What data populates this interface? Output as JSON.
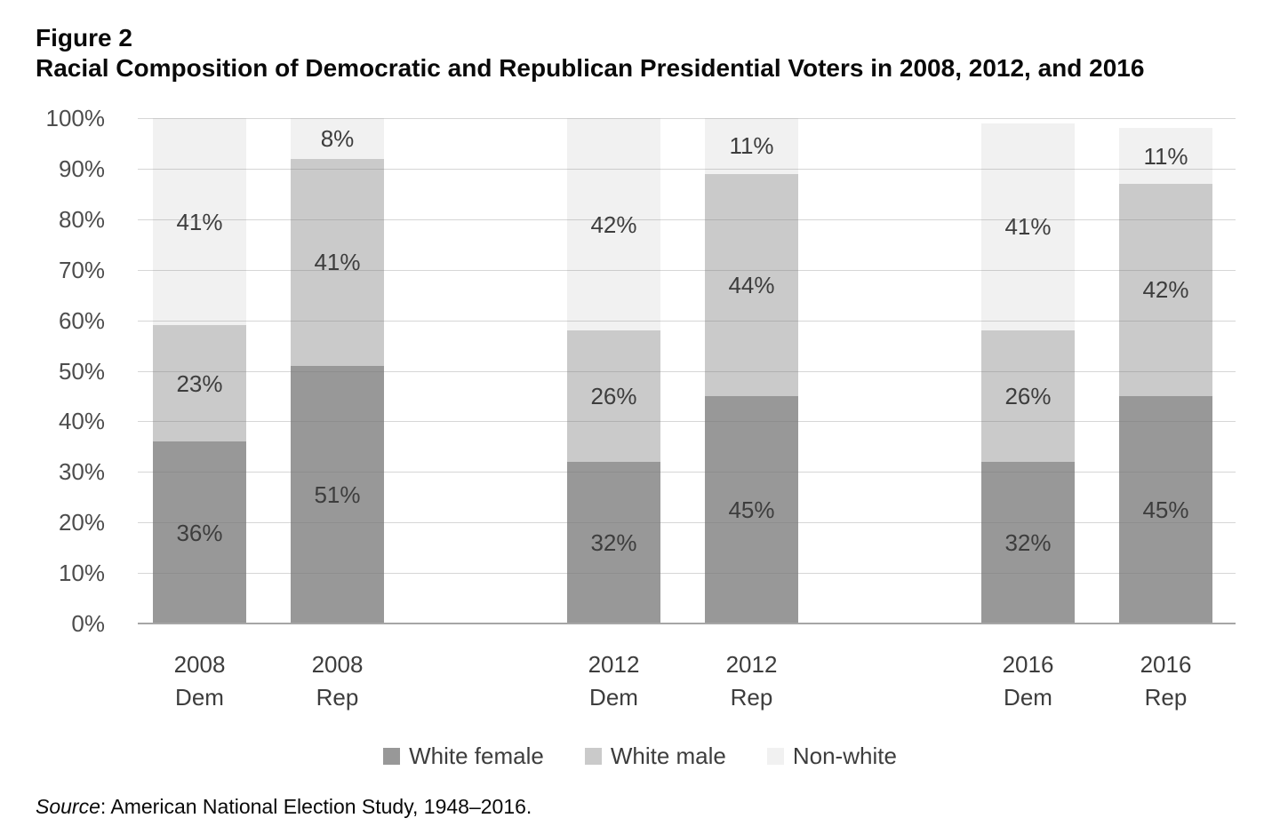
{
  "figure": {
    "label": "Figure 2",
    "title": "Racial Composition of Democratic and Republican Presidential Voters in 2008, 2012, and 2016",
    "source": {
      "prefix": "Source",
      "text": ": American National Election Study, 1948–2016."
    }
  },
  "chart_data": {
    "type": "bar",
    "stacked": true,
    "title": "Racial Composition of Democratic and Republican Presidential Voters in 2008, 2012, and 2016",
    "categories": [
      "2008 Dem",
      "2008 Rep",
      "2012 Dem",
      "2012 Rep",
      "2016 Dem",
      "2016 Rep"
    ],
    "category_lines": [
      [
        "2008",
        "Dem"
      ],
      [
        "2008",
        "Rep"
      ],
      [
        "2012",
        "Dem"
      ],
      [
        "2012",
        "Rep"
      ],
      [
        "2016",
        "Dem"
      ],
      [
        "2016",
        "Rep"
      ]
    ],
    "series": [
      {
        "name": "White female",
        "color": "#989898",
        "values": [
          36,
          51,
          32,
          45,
          32,
          45
        ]
      },
      {
        "name": "White male",
        "color": "#cacaca",
        "values": [
          23,
          41,
          26,
          44,
          26,
          42
        ]
      },
      {
        "name": "Non-white",
        "color": "#f1f1f1",
        "values": [
          41,
          8,
          42,
          11,
          41,
          11
        ]
      }
    ],
    "value_suffix": "%",
    "ylim": [
      0,
      100
    ],
    "ytick_step": 10,
    "y_ticks": [
      "0%",
      "10%",
      "20%",
      "30%",
      "40%",
      "50%",
      "60%",
      "70%",
      "80%",
      "90%",
      "100%"
    ],
    "grid": true,
    "legend_position": "bottom",
    "legend": [
      "White female",
      "White male",
      "Non-white"
    ],
    "colors": {
      "gridline": "#d9d9d9",
      "axis_line": "#a6a6a6",
      "bar_label_text": "#3d3d3d",
      "tick_text": "#4d4d4d",
      "title_text": "#0a0a0a"
    }
  }
}
